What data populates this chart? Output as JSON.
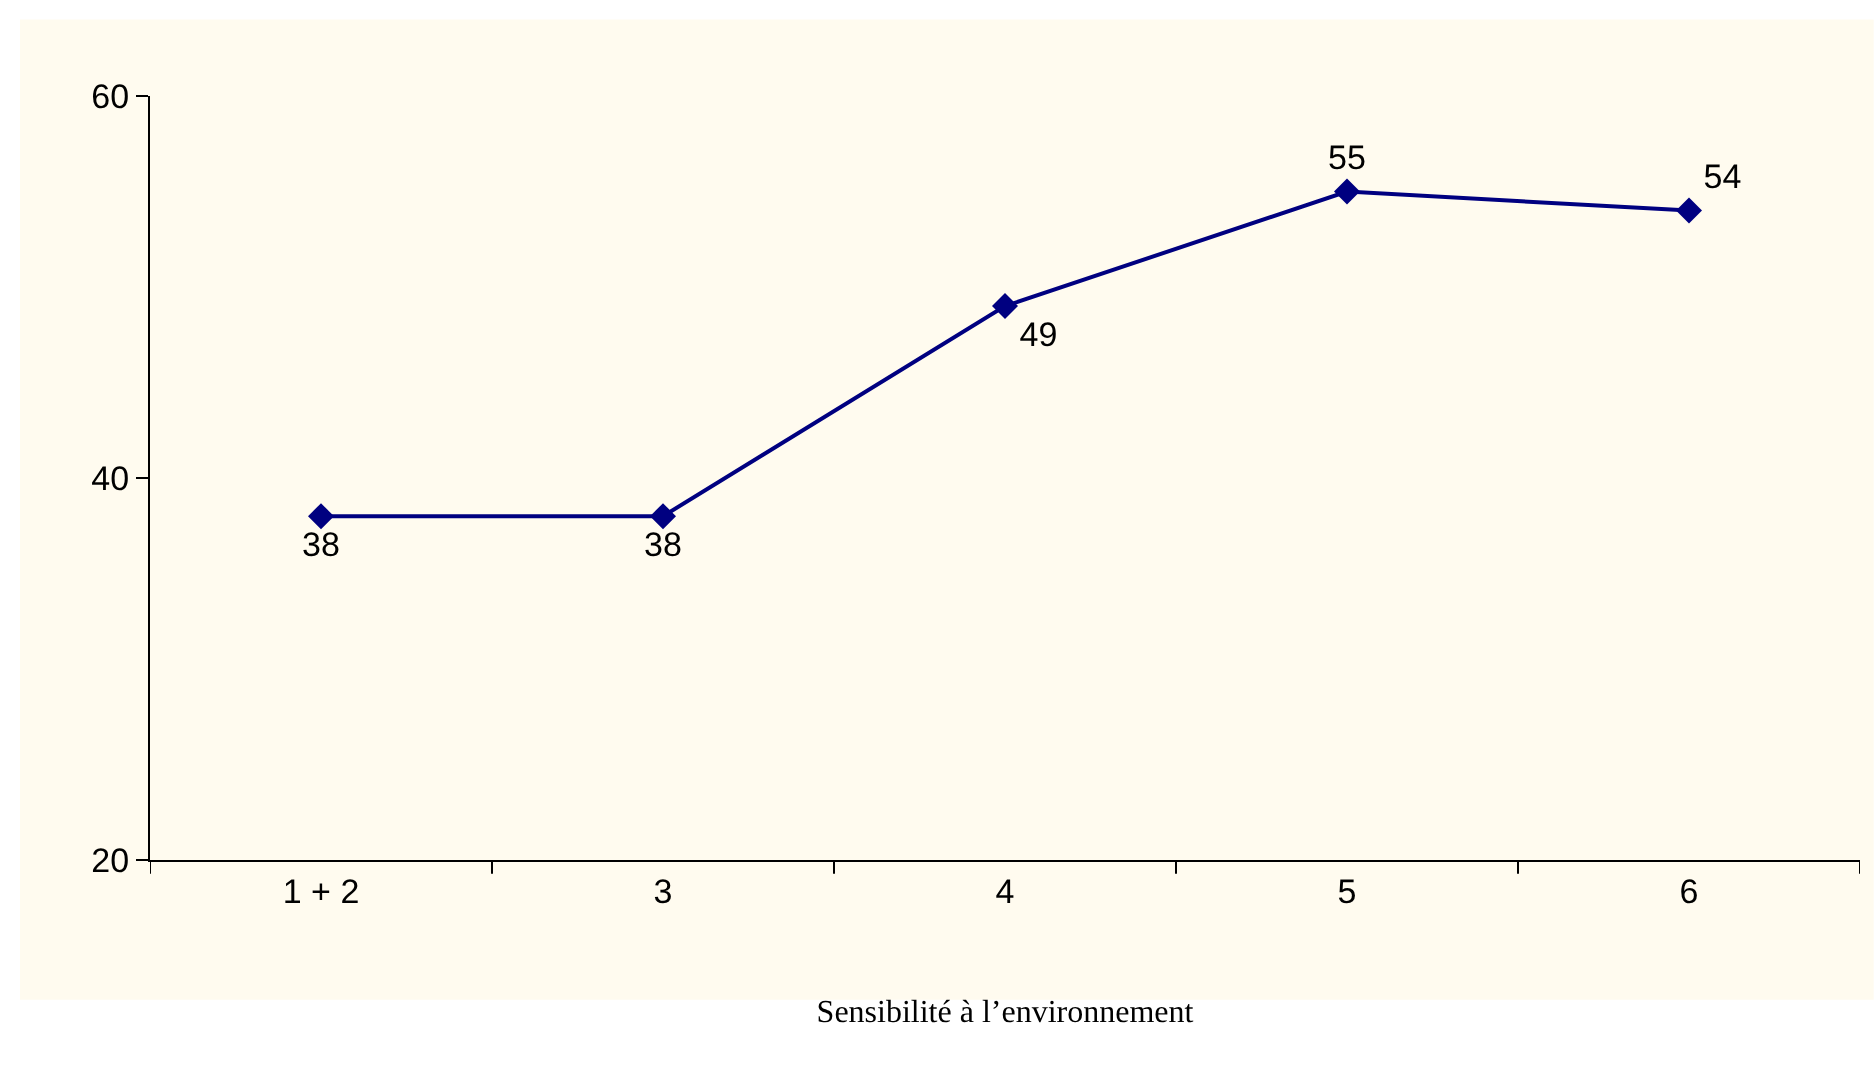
{
  "chart_data": {
    "type": "line",
    "xlabel": "Sensibilité à l’environnement",
    "categories": [
      "1 + 2",
      "3",
      "4",
      "5",
      "6"
    ],
    "series": [
      {
        "color": "#000080",
        "values": [
          38,
          38,
          49,
          55,
          54
        ]
      }
    ],
    "ylim": [
      20,
      60
    ],
    "yticks": [
      20,
      40,
      60
    ],
    "grid": false,
    "legend": false,
    "marker": "diamond",
    "line_style": "solid",
    "data_labels": true
  }
}
